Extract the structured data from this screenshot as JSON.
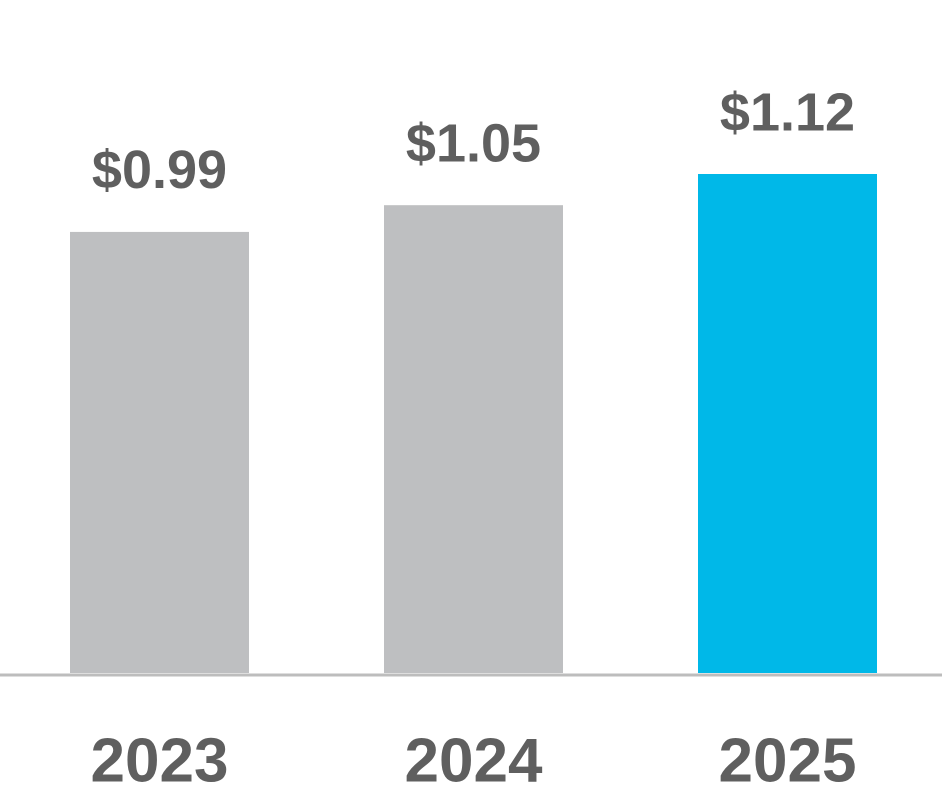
{
  "chart_data": {
    "type": "bar",
    "categories": [
      "2023",
      "2024",
      "2025"
    ],
    "values": [
      0.99,
      1.05,
      1.12
    ],
    "value_labels": [
      "$0.99",
      "$1.05",
      "$1.12"
    ],
    "colors": [
      "#bebfc1",
      "#bebfc1",
      "#00b8e8"
    ]
  }
}
